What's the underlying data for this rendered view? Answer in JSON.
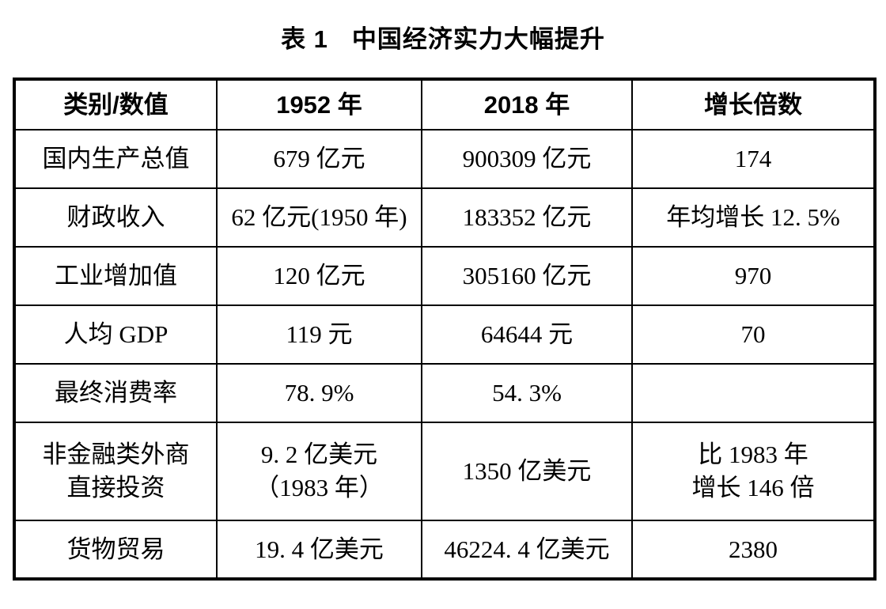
{
  "colors": {
    "background": "#ffffff",
    "text": "#000000",
    "border": "#000000"
  },
  "title": {
    "label": "表 1",
    "caption": "中国经济实力大幅提升"
  },
  "table": {
    "headers": [
      "类别/数值",
      "1952 年",
      "2018 年",
      "增长倍数"
    ],
    "rows": [
      [
        "国内生产总值",
        "679 亿元",
        "900309 亿元",
        "174"
      ],
      [
        "财政收入",
        "62 亿元(1950 年)",
        "183352 亿元",
        "年均增长 12. 5%"
      ],
      [
        "工业增加值",
        "120 亿元",
        "305160 亿元",
        "970"
      ],
      [
        "人均 GDP",
        "119 元",
        "64644 元",
        "70"
      ],
      [
        "最终消费率",
        "78. 9%",
        "54. 3%",
        ""
      ],
      [
        "非金融类外商\n直接投资",
        "9. 2 亿美元\n（1983 年）",
        "1350 亿美元",
        "比 1983 年\n增长 146 倍"
      ],
      [
        "货物贸易",
        "19. 4 亿美元",
        "46224. 4 亿美元",
        "2380"
      ]
    ]
  },
  "chart_data": {
    "type": "table",
    "title": "表 1 中国经济实力大幅提升",
    "columns": [
      "类别/数值",
      "1952 年",
      "2018 年",
      "增长倍数"
    ],
    "rows": [
      [
        "国内生产总值",
        "679 亿元",
        "900309 亿元",
        "174"
      ],
      [
        "财政收入",
        "62 亿元(1950 年)",
        "183352 亿元",
        "年均增长 12. 5%"
      ],
      [
        "工业增加值",
        "120 亿元",
        "305160 亿元",
        "970"
      ],
      [
        "人均 GDP",
        "119 元",
        "64644 元",
        "70"
      ],
      [
        "最终消费率",
        "78. 9%",
        "54. 3%",
        ""
      ],
      [
        "非金融类外商直接投资",
        "9. 2 亿美元（1983 年）",
        "1350 亿美元",
        "比 1983 年增长 146 倍"
      ],
      [
        "货物贸易",
        "19. 4 亿美元",
        "46224. 4 亿美元",
        "2380"
      ]
    ]
  }
}
